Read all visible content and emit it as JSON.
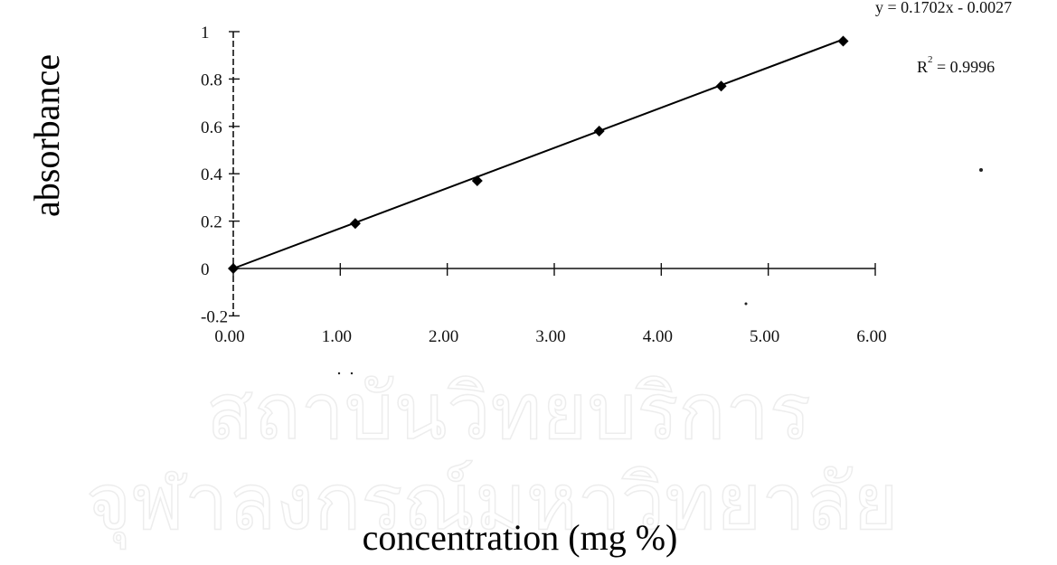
{
  "chart_data": {
    "type": "scatter",
    "title": "",
    "xlabel": "concentration  (mg %)",
    "ylabel": "absorbance",
    "xlim": [
      0,
      6
    ],
    "ylim": [
      -0.2,
      1
    ],
    "x_ticks": [
      "0.00",
      "1.00",
      "2.00",
      "3.00",
      "4.00",
      "5.00",
      "6.00"
    ],
    "y_ticks": [
      "-0.2",
      "0",
      "0.2",
      "0.4",
      "0.6",
      "0.8",
      "1"
    ],
    "series": [
      {
        "x": [
          0,
          1.14,
          2.28,
          3.42,
          4.56,
          5.7
        ],
        "y": [
          0,
          0.19,
          0.37,
          0.58,
          0.77,
          0.96
        ],
        "color": "#000000"
      }
    ],
    "trendline": {
      "slope": 0.1702,
      "intercept": -0.0027,
      "x_range": [
        0,
        5.7
      ],
      "equation_label": "y = 0.1702x - 0.0027",
      "r2_label": "R",
      "r2_exponent": "2",
      "r2_value": " = 0.9996"
    },
    "grid": false,
    "legend": "none"
  },
  "watermark": {
    "line1": "สถาบันวิทยบริการ",
    "line2": "จุฬาลงกรณ์มหาวิทยาลัย"
  }
}
